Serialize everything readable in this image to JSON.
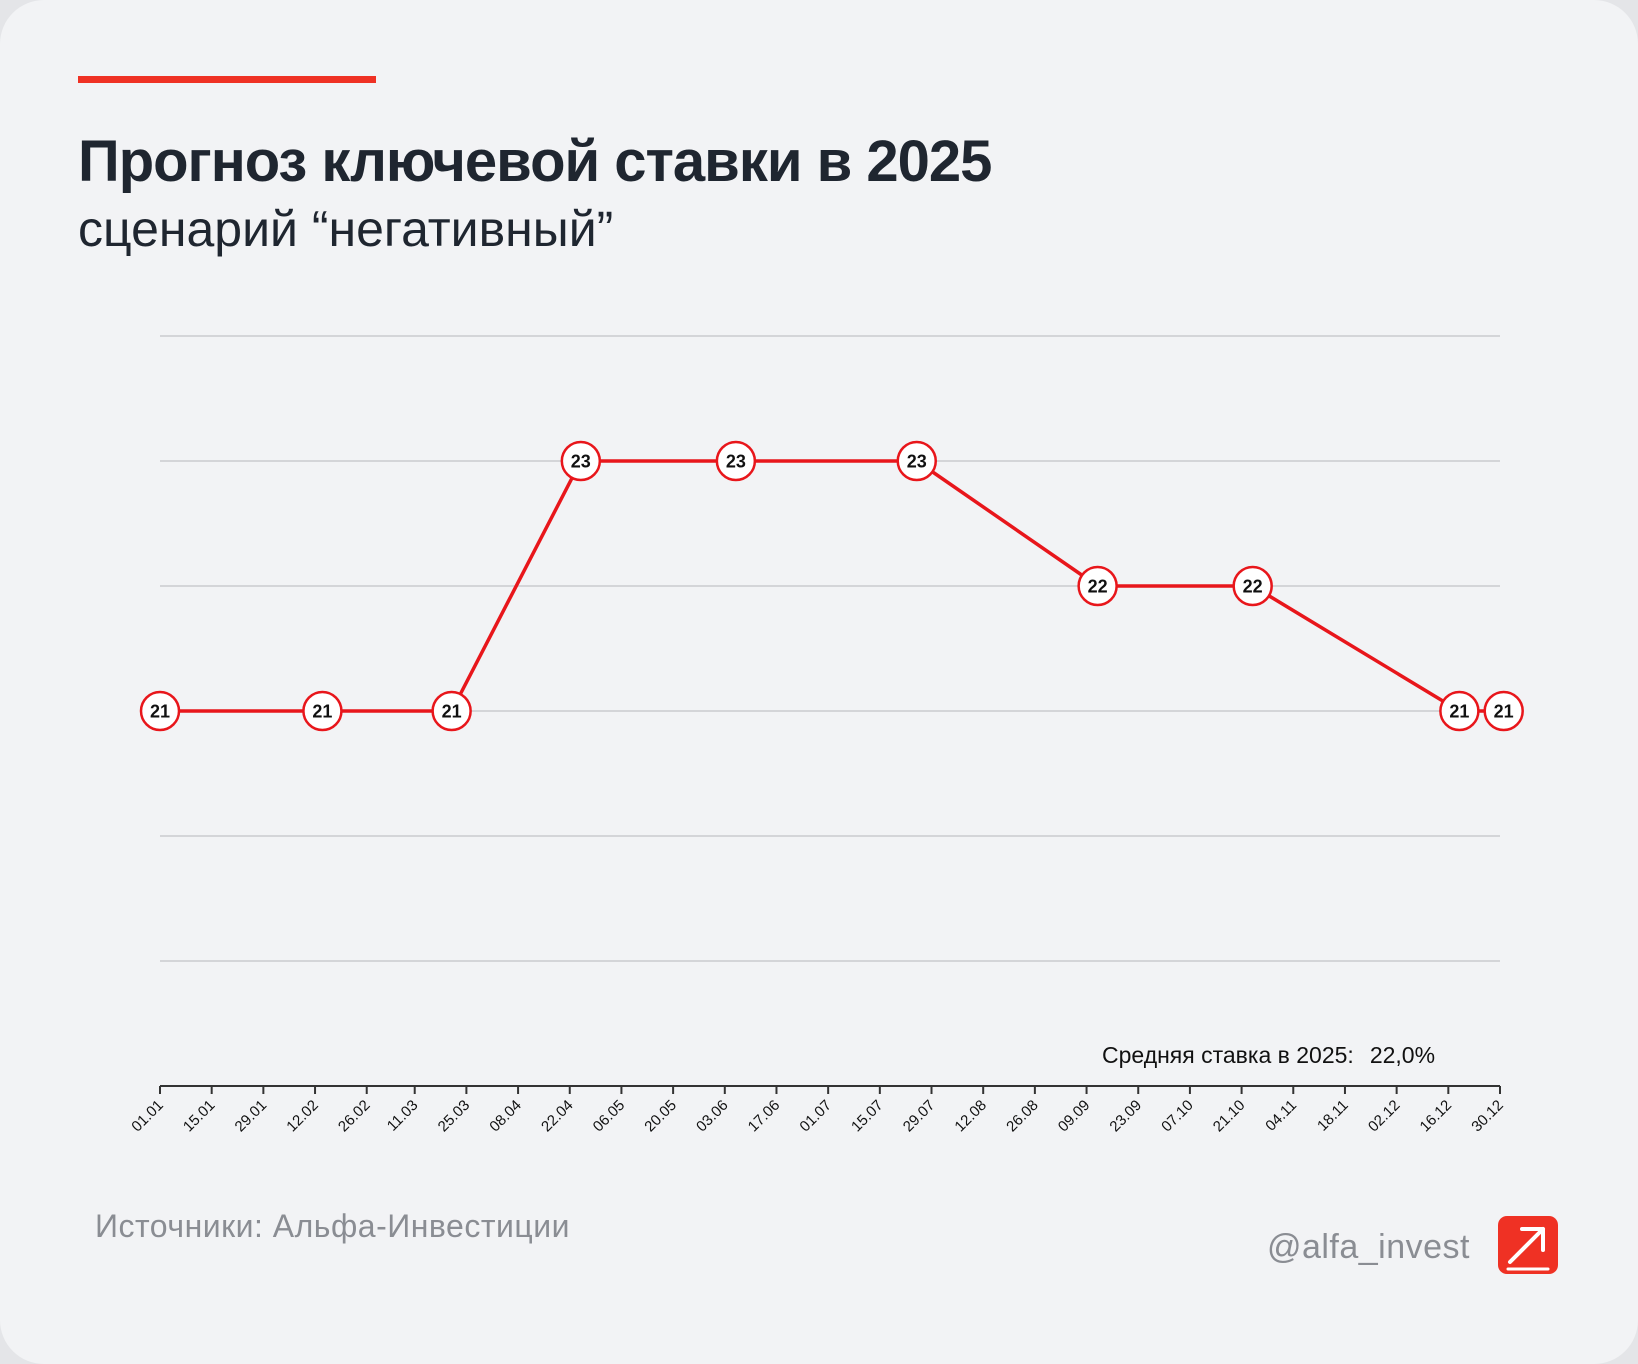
{
  "header": {
    "title": "Прогноз ключевой ставки в 2025",
    "subtitle": "сценарий “негативный”"
  },
  "footer": {
    "sources": "Источники: Альфа-Инвестиции",
    "handle": "@alfa_invest",
    "logo_icon": "alfa-arrow-logo-icon"
  },
  "average": {
    "label": "Средняя ставка в 2025:",
    "value": "22,0%"
  },
  "colors": {
    "accent": "#ef3124",
    "line": "#e8161b",
    "grid": "#c9cbcf",
    "axis": "#333333",
    "background": "#f2f3f5"
  },
  "chart_data": {
    "type": "line",
    "title": "Прогноз ключевой ставки в 2025",
    "subtitle": "сценарий “негативный”",
    "xlabel": "",
    "ylabel": "",
    "x_ticks": [
      "01.01",
      "15.01",
      "29.01",
      "12.02",
      "26.02",
      "11.03",
      "25.03",
      "08.04",
      "22.04",
      "06.05",
      "20.05",
      "03.06",
      "17.06",
      "01.07",
      "15.07",
      "29.07",
      "12.08",
      "26.08",
      "09.09",
      "23.09",
      "07.10",
      "21.10",
      "04.11",
      "18.11",
      "02.12",
      "16.12",
      "30.12"
    ],
    "x_range": [
      "01.01",
      "30.12"
    ],
    "ylim": [
      18,
      24
    ],
    "y_gridlines": [
      18,
      19,
      20,
      21,
      22,
      23,
      24
    ],
    "y_tick_labels_shown": false,
    "grid": true,
    "series": [
      {
        "color": "#e8161b",
        "points": [
          {
            "date": "01.01",
            "value": 21
          },
          {
            "date": "14.02",
            "value": 21
          },
          {
            "date": "21.03",
            "value": 21
          },
          {
            "date": "25.04",
            "value": 23
          },
          {
            "date": "06.06",
            "value": 23
          },
          {
            "date": "25.07",
            "value": 23
          },
          {
            "date": "12.09",
            "value": 22
          },
          {
            "date": "24.10",
            "value": 22
          },
          {
            "date": "19.12",
            "value": 21
          },
          {
            "date": "31.12",
            "value": 21
          }
        ]
      }
    ]
  }
}
